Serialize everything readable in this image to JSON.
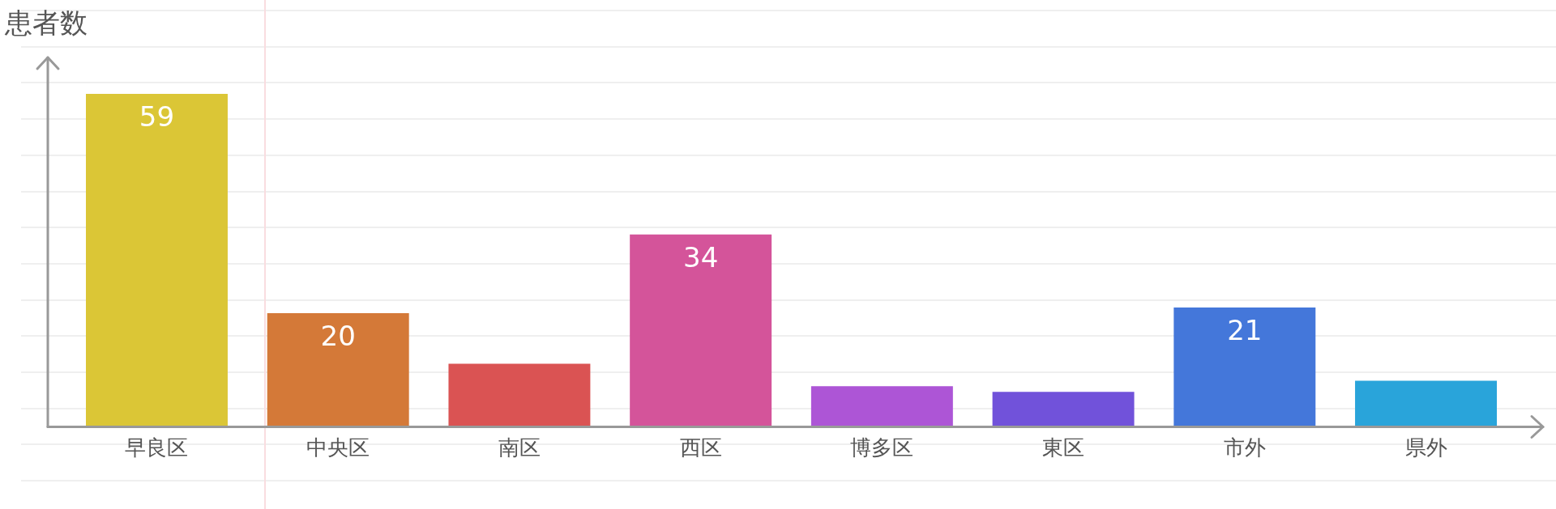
{
  "chart_data": {
    "type": "bar",
    "ylabel": "患者数",
    "categories": [
      "早良区",
      "中央区",
      "南区",
      "西区",
      "博多区",
      "東区",
      "市外",
      "県外"
    ],
    "values": [
      59,
      20,
      11,
      34,
      7,
      6,
      21,
      8
    ],
    "colors": [
      "#dbc636",
      "#d47938",
      "#da5353",
      "#d4549a",
      "#ad55d6",
      "#7152da",
      "#4477da",
      "#29a4da"
    ],
    "value_labels": [
      "59",
      "20",
      null,
      "34",
      null,
      null,
      "21",
      null
    ]
  }
}
